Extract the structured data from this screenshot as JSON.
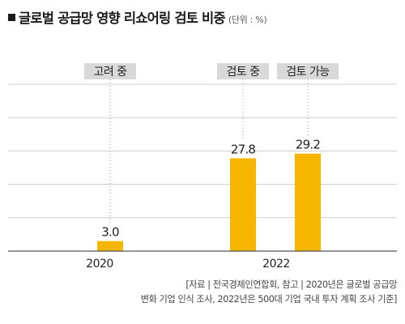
{
  "title": "글로벌 공급망 영향 리쇼어링 검토 비중",
  "unit": "(단위 : %)",
  "source": {
    "line1": "[자료 | 전국경제인연합회, 참고 | 2020년은 글로벌 공급망",
    "line2": "변화 기업 인식 조사, 2022년은 500대 기업 국내 투자 계획 조사 기준]"
  },
  "colors": {
    "bar": "#f5b500",
    "label_bg": "#d9d9d9",
    "grid": "#cfcfcf",
    "axis": "#555555",
    "text": "#222222"
  },
  "chart_data": {
    "type": "bar",
    "title": "글로벌 공급망 영향 리쇼어링 검토 비중",
    "unit": "%",
    "ylim": [
      0,
      50
    ],
    "grid": true,
    "groups": [
      {
        "year": "2020",
        "bars": [
          {
            "label": "고려 중",
            "value": 3.0,
            "value_label": "3.0"
          }
        ]
      },
      {
        "year": "2022",
        "bars": [
          {
            "label": "검토 중",
            "value": 27.8,
            "value_label": "27.8"
          },
          {
            "label": "검토 가능",
            "value": 29.2,
            "value_label": "29.2"
          }
        ]
      }
    ]
  }
}
